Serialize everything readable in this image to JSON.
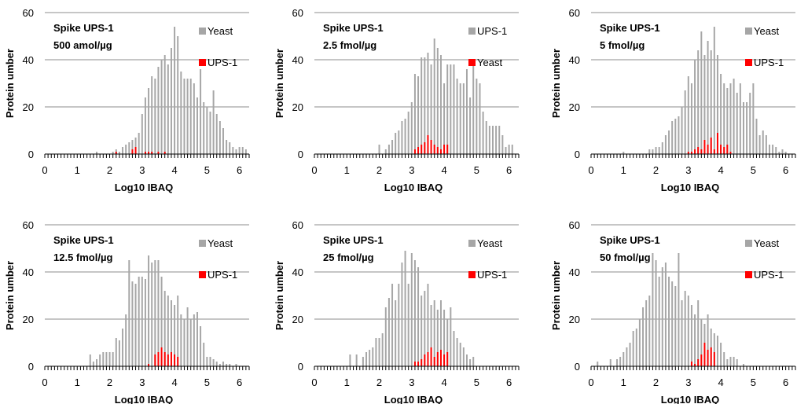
{
  "chart_data": [
    {
      "type": "bar",
      "annotation": [
        "Spike UPS-1",
        "500 amol/µg"
      ],
      "xlabel": "Log10 IBAQ",
      "ylabel": "Protein umber",
      "xlim": [
        0,
        6.3
      ],
      "ylim": [
        0,
        60
      ],
      "xticks": [
        "0",
        "1",
        "2",
        "3",
        "4",
        "5",
        "6"
      ],
      "yticks": [
        "0",
        "20",
        "40",
        "60"
      ],
      "grid": true,
      "legend_position": "top-right",
      "bin_width": 0.1,
      "x_start": 0.1,
      "legend_entries": [
        {
          "label": "Yeast",
          "series_index": 0
        },
        {
          "label": "UPS-1",
          "series_index": 1
        }
      ],
      "series": [
        {
          "name": "Yeast",
          "color": "#a6a6a6",
          "values": [
            0,
            0,
            0,
            0,
            0,
            0,
            0,
            0,
            0,
            0,
            0,
            0,
            0,
            0,
            0,
            1,
            0,
            0,
            0,
            0,
            1,
            2,
            1,
            3,
            4,
            5,
            6,
            7,
            9,
            17,
            24,
            28,
            33,
            32,
            37,
            40,
            42,
            38,
            45,
            54,
            50,
            35,
            32,
            32,
            32,
            30,
            24,
            36,
            22,
            20,
            18,
            27,
            17,
            14,
            11,
            6,
            5,
            3,
            2,
            3,
            3,
            2
          ]
        },
        {
          "name": "UPS-1",
          "color": "#ff0000",
          "values": [
            0,
            0,
            0,
            0,
            0,
            0,
            0,
            0,
            0,
            0,
            0,
            0,
            0,
            0,
            0,
            0,
            0,
            0,
            0,
            0,
            0,
            1,
            0,
            0,
            0,
            0,
            2,
            3,
            0,
            0,
            1,
            1,
            1,
            0,
            1,
            0,
            1,
            0,
            0,
            0,
            0,
            0,
            0,
            0,
            0,
            0,
            0,
            0,
            0,
            0,
            0,
            0,
            0,
            0,
            0,
            0,
            0,
            0,
            0,
            0,
            0,
            0
          ]
        }
      ]
    },
    {
      "type": "bar",
      "annotation": [
        "Spike UPS-1",
        "2.5 fmol/µg"
      ],
      "xlabel": "Log10 IBAQ",
      "ylabel": "Protein umber",
      "xlim": [
        0,
        6.3
      ],
      "ylim": [
        0,
        60
      ],
      "xticks": [
        "0",
        "1",
        "2",
        "3",
        "4",
        "5",
        "6"
      ],
      "yticks": [
        "0",
        "20",
        "40",
        "60"
      ],
      "grid": true,
      "legend_position": "top-right",
      "bin_width": 0.1,
      "x_start": 0.1,
      "legend_entries": [
        {
          "label": "UPS-1",
          "series_index": 0
        },
        {
          "label": "Yeast",
          "series_index": 1
        }
      ],
      "series": [
        {
          "name": "Yeast",
          "color": "#a6a6a6",
          "values": [
            0,
            0,
            0,
            0,
            0,
            0,
            0,
            0,
            0,
            0,
            0,
            0,
            0,
            0,
            0,
            0,
            0,
            0,
            0,
            4,
            0,
            2,
            4,
            6,
            9,
            10,
            14,
            15,
            18,
            22,
            34,
            33,
            41,
            41,
            43,
            38,
            49,
            45,
            42,
            30,
            38,
            38,
            38,
            32,
            30,
            30,
            36,
            24,
            40,
            32,
            30,
            18,
            14,
            12,
            12,
            12,
            12,
            8,
            3,
            4,
            4,
            0
          ]
        },
        {
          "name": "UPS-1",
          "color": "#ff0000",
          "values": [
            0,
            0,
            0,
            0,
            0,
            0,
            0,
            0,
            0,
            0,
            0,
            0,
            0,
            0,
            0,
            0,
            0,
            0,
            0,
            0,
            0,
            0,
            0,
            0,
            0,
            0,
            0,
            0,
            0,
            0,
            2,
            3,
            4,
            5,
            8,
            6,
            4,
            3,
            2,
            4,
            4,
            0,
            0,
            0,
            0,
            0,
            0,
            0,
            0,
            0,
            0,
            0,
            0,
            0,
            0,
            0,
            0,
            0,
            0,
            0,
            0,
            0
          ]
        }
      ]
    },
    {
      "type": "bar",
      "annotation": [
        "Spike UPS-1",
        "5 fmol/µg"
      ],
      "xlabel": "Log10 IBAQ",
      "ylabel": "Protein umber",
      "xlim": [
        0,
        6.3
      ],
      "ylim": [
        0,
        60
      ],
      "xticks": [
        "0",
        "1",
        "2",
        "3",
        "4",
        "5",
        "6"
      ],
      "yticks": [
        "0",
        "20",
        "40",
        "60"
      ],
      "grid": true,
      "legend_position": "top-right",
      "bin_width": 0.1,
      "x_start": 0.1,
      "legend_entries": [
        {
          "label": "Yeast",
          "series_index": 0
        },
        {
          "label": "UPS-1",
          "series_index": 1
        }
      ],
      "series": [
        {
          "name": "Yeast",
          "color": "#a6a6a6",
          "values": [
            0,
            0,
            0,
            0,
            0,
            0,
            0,
            0,
            0,
            1,
            0,
            0,
            0,
            0,
            0,
            0,
            0,
            2,
            2,
            3,
            3,
            5,
            8,
            10,
            14,
            15,
            16,
            20,
            27,
            33,
            30,
            40,
            44,
            52,
            42,
            48,
            44,
            54,
            42,
            34,
            30,
            28,
            30,
            32,
            26,
            30,
            22,
            22,
            26,
            30,
            15,
            8,
            10,
            8,
            4,
            4,
            3,
            1,
            2,
            1,
            0,
            0
          ]
        },
        {
          "name": "UPS-1",
          "color": "#ff0000",
          "values": [
            0,
            0,
            0,
            0,
            0,
            0,
            0,
            0,
            0,
            0,
            0,
            0,
            0,
            0,
            0,
            0,
            0,
            0,
            0,
            0,
            0,
            0,
            0,
            0,
            0,
            0,
            0,
            0,
            0,
            1,
            1,
            2,
            3,
            2,
            6,
            4,
            7,
            2,
            9,
            4,
            3,
            4,
            1,
            0,
            0,
            0,
            0,
            0,
            0,
            0,
            0,
            0,
            0,
            0,
            0,
            0,
            0,
            0,
            0,
            0,
            0,
            0
          ]
        }
      ]
    },
    {
      "type": "bar",
      "annotation": [
        "Spike UPS-1",
        "12.5 fmol/µg"
      ],
      "xlabel": "Log10 IBAQ",
      "ylabel": "Protein umber",
      "xlim": [
        0,
        6.3
      ],
      "ylim": [
        0,
        60
      ],
      "xticks": [
        "0",
        "1",
        "2",
        "3",
        "4",
        "5",
        "6"
      ],
      "yticks": [
        "0",
        "20",
        "40",
        "60"
      ],
      "grid": true,
      "legend_position": "top-right",
      "bin_width": 0.1,
      "x_start": 0.1,
      "legend_entries": [
        {
          "label": "Yeast",
          "series_index": 0
        },
        {
          "label": "UPS-1",
          "series_index": 1
        }
      ],
      "series": [
        {
          "name": "Yeast",
          "color": "#a6a6a6",
          "values": [
            0,
            0,
            0,
            0,
            0,
            0,
            0,
            0,
            0,
            0,
            0,
            0,
            0,
            5,
            2,
            3,
            5,
            6,
            6,
            6,
            6,
            12,
            11,
            16,
            22,
            45,
            36,
            35,
            38,
            38,
            37,
            47,
            44,
            45,
            45,
            38,
            32,
            30,
            28,
            26,
            30,
            22,
            20,
            25,
            20,
            22,
            23,
            17,
            10,
            4,
            4,
            3,
            2,
            1,
            2,
            1,
            1,
            0,
            1,
            0,
            0,
            0
          ]
        },
        {
          "name": "UPS-1",
          "color": "#ff0000",
          "values": [
            0,
            0,
            0,
            0,
            0,
            0,
            0,
            0,
            0,
            0,
            0,
            0,
            0,
            0,
            0,
            0,
            0,
            0,
            0,
            0,
            0,
            0,
            0,
            0,
            0,
            0,
            0,
            0,
            0,
            0,
            0,
            1,
            0,
            5,
            6,
            8,
            6,
            5,
            6,
            5,
            4,
            0,
            0,
            0,
            0,
            0,
            0,
            0,
            0,
            0,
            0,
            0,
            0,
            0,
            0,
            0,
            0,
            0,
            0,
            0,
            0,
            0
          ]
        }
      ]
    },
    {
      "type": "bar",
      "annotation": [
        "Spike UPS-1",
        "25 fmol/µg"
      ],
      "xlabel": "Log10 IBAQ",
      "ylabel": "Protein umber",
      "xlim": [
        0,
        6.3
      ],
      "ylim": [
        0,
        60
      ],
      "xticks": [
        "0",
        "1",
        "2",
        "3",
        "4",
        "5",
        "6"
      ],
      "yticks": [
        "0",
        "20",
        "40",
        "60"
      ],
      "grid": true,
      "legend_position": "top-right",
      "bin_width": 0.1,
      "x_start": 0.1,
      "legend_entries": [
        {
          "label": "Yeast",
          "series_index": 0
        },
        {
          "label": "UPS-1",
          "series_index": 1
        }
      ],
      "series": [
        {
          "name": "Yeast",
          "color": "#a6a6a6",
          "values": [
            0,
            0,
            0,
            0,
            0,
            0,
            0,
            0,
            0,
            0,
            5,
            0,
            5,
            0,
            4,
            6,
            7,
            8,
            12,
            12,
            14,
            25,
            29,
            35,
            28,
            35,
            44,
            49,
            35,
            48,
            45,
            42,
            30,
            32,
            35,
            26,
            28,
            24,
            28,
            24,
            20,
            25,
            15,
            12,
            10,
            8,
            5,
            3,
            4,
            0,
            0,
            0,
            0,
            0,
            0,
            0,
            0,
            0,
            0,
            0,
            0,
            0
          ]
        },
        {
          "name": "UPS-1",
          "color": "#ff0000",
          "values": [
            0,
            0,
            0,
            0,
            0,
            0,
            0,
            0,
            0,
            0,
            0,
            0,
            0,
            0,
            0,
            0,
            0,
            0,
            0,
            0,
            0,
            0,
            0,
            0,
            0,
            0,
            0,
            0,
            0,
            0,
            2,
            2,
            3,
            5,
            6,
            8,
            4,
            6,
            7,
            5,
            6,
            0,
            0,
            0,
            0,
            0,
            0,
            0,
            0,
            0,
            0,
            0,
            0,
            0,
            0,
            0,
            0,
            0,
            0,
            0,
            0,
            0
          ]
        }
      ]
    },
    {
      "type": "bar",
      "annotation": [
        "Spike UPS-1",
        "50 fmol/µg"
      ],
      "xlabel": "Log10 IBAQ",
      "ylabel": "Protein umber",
      "xlim": [
        0,
        6.3
      ],
      "ylim": [
        0,
        60
      ],
      "xticks": [
        "0",
        "1",
        "2",
        "3",
        "4",
        "5",
        "6"
      ],
      "yticks": [
        "0",
        "20",
        "40",
        "60"
      ],
      "grid": true,
      "legend_position": "top-right",
      "bin_width": 0.1,
      "x_start": 0.1,
      "legend_entries": [
        {
          "label": "Yeast",
          "series_index": 0
        },
        {
          "label": "UPS-1",
          "series_index": 1
        }
      ],
      "series": [
        {
          "name": "Yeast",
          "color": "#a6a6a6",
          "values": [
            0,
            2,
            0,
            0,
            0,
            3,
            0,
            3,
            4,
            6,
            8,
            10,
            15,
            16,
            20,
            25,
            28,
            30,
            48,
            45,
            38,
            42,
            44,
            38,
            36,
            34,
            48,
            28,
            32,
            30,
            26,
            22,
            28,
            20,
            18,
            22,
            16,
            14,
            13,
            10,
            6,
            3,
            4,
            4,
            3,
            0,
            1,
            0,
            0,
            0,
            0,
            0,
            0,
            0,
            0,
            0,
            0,
            0,
            0,
            0,
            0,
            0
          ]
        },
        {
          "name": "UPS-1",
          "color": "#ff0000",
          "values": [
            0,
            0,
            0,
            0,
            0,
            0,
            0,
            0,
            0,
            0,
            0,
            0,
            0,
            0,
            0,
            0,
            0,
            0,
            0,
            0,
            0,
            0,
            0,
            0,
            0,
            0,
            0,
            0,
            0,
            0,
            2,
            1,
            3,
            5,
            10,
            7,
            8,
            6,
            0,
            0,
            0,
            0,
            0,
            0,
            0,
            0,
            0,
            0,
            0,
            0,
            0,
            0,
            0,
            0,
            0,
            0,
            0,
            0,
            0,
            0,
            0,
            0
          ]
        }
      ]
    }
  ]
}
